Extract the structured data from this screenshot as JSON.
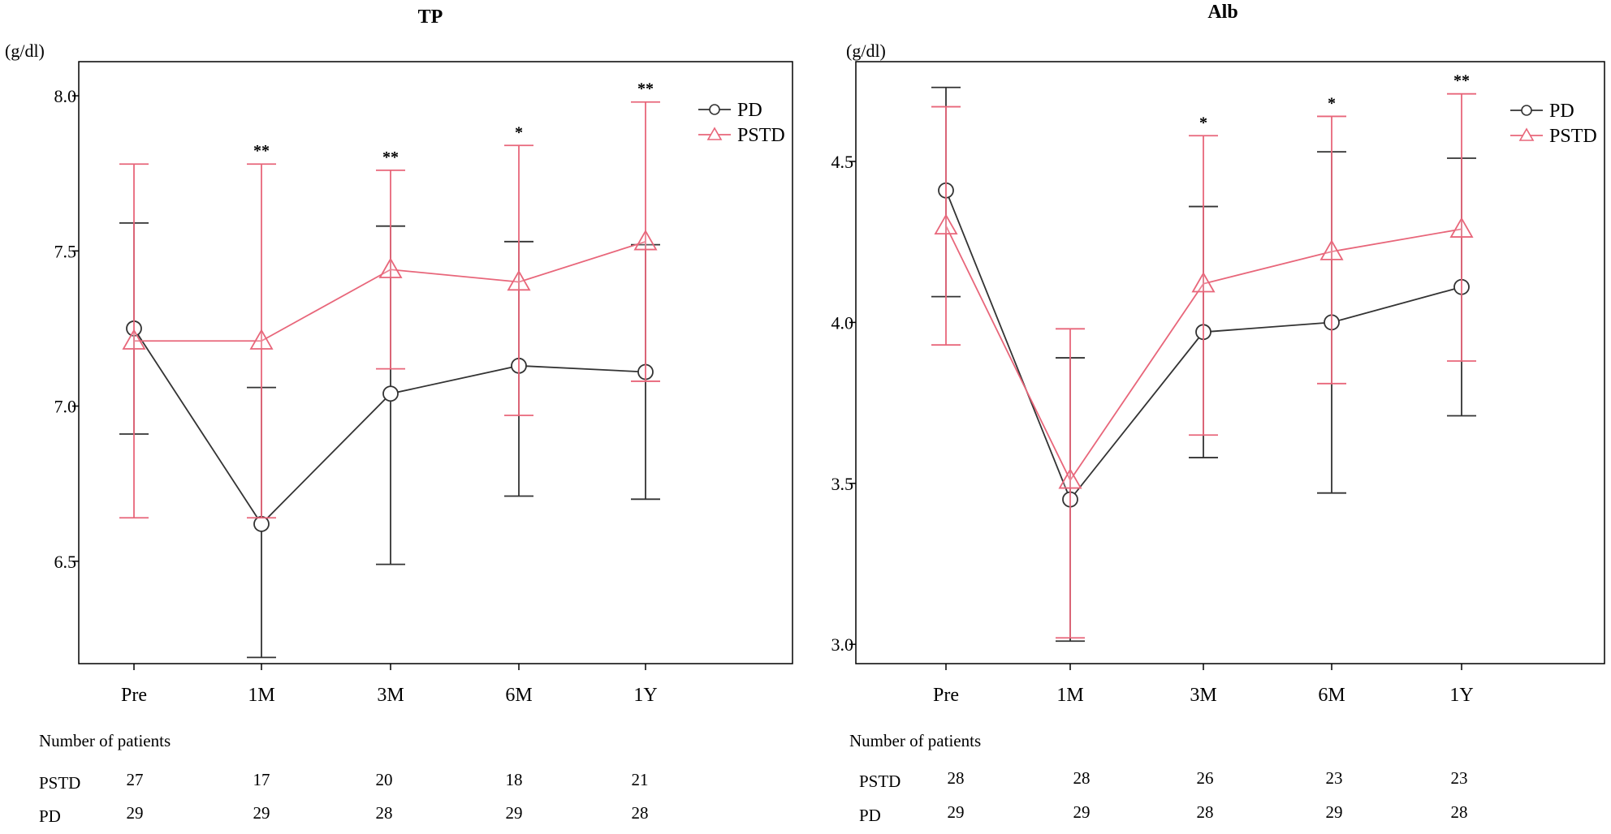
{
  "chart_data": [
    {
      "type": "line",
      "title": "TP",
      "unit_label": "(g/dl)",
      "categories": [
        "Pre",
        "1M",
        "3M",
        "6M",
        "1Y"
      ],
      "ylim": [
        6.17,
        8.11
      ],
      "yticks": [
        6.5,
        7.0,
        7.5,
        8.0
      ],
      "ytick_labels": [
        "6.5",
        "7.0",
        "7.5",
        "8.0"
      ],
      "legend_position": "top-right",
      "series": [
        {
          "name": "PD",
          "color": "#333333",
          "marker": "circle",
          "values": [
            7.25,
            6.62,
            7.04,
            7.13,
            7.11
          ],
          "lower": [
            6.91,
            6.19,
            6.49,
            6.71,
            6.7
          ],
          "upper": [
            7.59,
            7.06,
            7.58,
            7.53,
            7.52
          ]
        },
        {
          "name": "PSTD",
          "color": "#e8667a",
          "marker": "triangle",
          "values": [
            7.21,
            7.21,
            7.44,
            7.4,
            7.53
          ],
          "lower": [
            6.64,
            6.64,
            7.12,
            6.97,
            7.08
          ],
          "upper": [
            7.78,
            7.78,
            7.76,
            7.84,
            7.98
          ]
        }
      ],
      "significance": [
        "",
        "**",
        "**",
        "*",
        "**"
      ],
      "patients_header": "Number of patients",
      "patients": [
        {
          "label": "PSTD",
          "counts": [
            "27",
            "17",
            "20",
            "18",
            "21"
          ]
        },
        {
          "label": "PD",
          "counts": [
            "29",
            "29",
            "28",
            "29",
            "28"
          ]
        }
      ]
    },
    {
      "type": "line",
      "title": "Alb",
      "unit_label": "(g/dl)",
      "categories": [
        "Pre",
        "1M",
        "3M",
        "6M",
        "1Y"
      ],
      "ylim": [
        2.94,
        4.81
      ],
      "yticks": [
        3.0,
        3.5,
        4.0,
        4.5
      ],
      "ytick_labels": [
        "3.0",
        "3.5",
        "4.0",
        "4.5"
      ],
      "legend_position": "top-right",
      "series": [
        {
          "name": "PD",
          "color": "#333333",
          "marker": "circle",
          "values": [
            4.41,
            3.45,
            3.97,
            4.0,
            4.11
          ],
          "lower": [
            4.08,
            3.01,
            3.58,
            3.47,
            3.71
          ],
          "upper": [
            4.73,
            3.89,
            4.36,
            4.53,
            4.51
          ]
        },
        {
          "name": "PSTD",
          "color": "#e8667a",
          "marker": "triangle",
          "values": [
            4.3,
            3.51,
            4.12,
            4.22,
            4.29
          ],
          "lower": [
            3.93,
            3.02,
            3.65,
            3.81,
            3.88
          ],
          "upper": [
            4.67,
            3.98,
            4.58,
            4.64,
            4.71
          ]
        }
      ],
      "significance": [
        "",
        "",
        "*",
        "*",
        "**"
      ],
      "patients_header": "Number of patients",
      "patients": [
        {
          "label": "PSTD",
          "counts": [
            "28",
            "28",
            "26",
            "23",
            "23"
          ]
        },
        {
          "label": "PD",
          "counts": [
            "29",
            "29",
            "28",
            "29",
            "28"
          ]
        }
      ]
    }
  ]
}
